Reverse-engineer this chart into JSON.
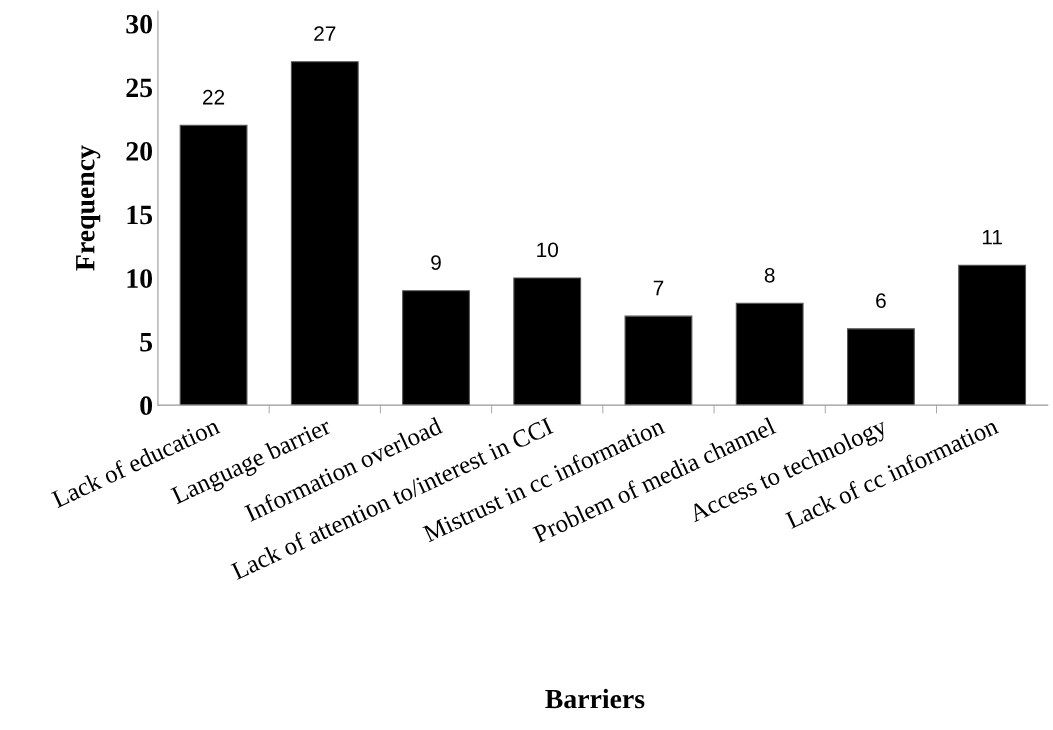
{
  "chart_data": {
    "type": "bar",
    "xlabel": "Barriers",
    "ylabel": "Frequency",
    "categories": [
      "Lack of education",
      "Language barrier",
      "Information overload",
      "Lack of attention to/interest in CCI",
      "Mistrust in cc information",
      "Problem of media channel",
      "Access to technology",
      "Lack of cc information"
    ],
    "values": [
      22,
      27,
      9,
      10,
      7,
      8,
      6,
      11
    ],
    "color": "#000000",
    "ylim": [
      0,
      31
    ],
    "yticks": [
      0,
      5,
      10,
      15,
      20,
      25,
      30
    ],
    "grid": false,
    "data_labels": true
  }
}
